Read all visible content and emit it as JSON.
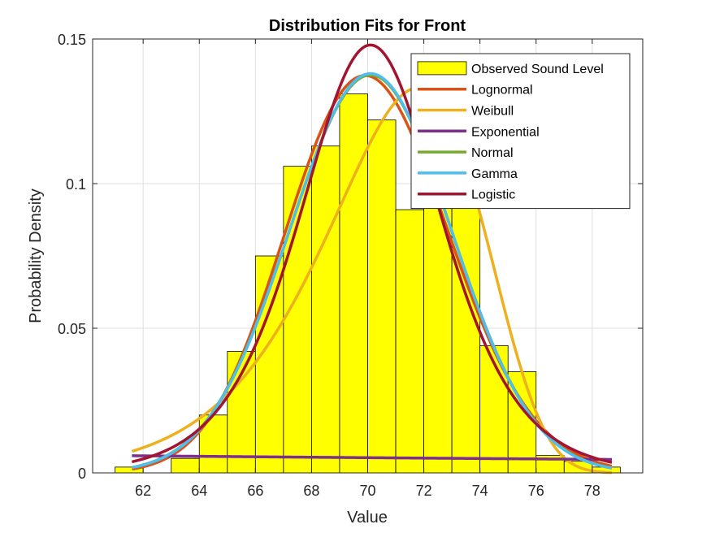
{
  "chart_data": {
    "type": "bar",
    "title": "Distribution Fits for Front",
    "xlabel": "Value",
    "ylabel": "Probability Density",
    "xlim": [
      60.2,
      79.8
    ],
    "ylim": [
      0,
      0.15
    ],
    "x_ticks": [
      62,
      64,
      66,
      68,
      70,
      72,
      74,
      76,
      78
    ],
    "y_ticks": [
      0,
      0.05,
      0.1,
      0.15
    ],
    "y_tick_labels": [
      "0",
      "0.05",
      "0.1",
      "0.15"
    ],
    "grid": true,
    "legend_position": "top-right",
    "histogram": {
      "name": "Observed Sound Level",
      "color": "#FFFF00",
      "edges": [
        61.0,
        62.0,
        63.0,
        64.0,
        65.0,
        66.0,
        67.0,
        68.0,
        69.0,
        70.0,
        71.0,
        72.0,
        73.0,
        74.0,
        75.0,
        76.0,
        77.0,
        78.0,
        79.0
      ],
      "values": [
        0.002,
        0.0,
        0.005,
        0.02,
        0.042,
        0.075,
        0.106,
        0.113,
        0.131,
        0.122,
        0.091,
        0.095,
        0.093,
        0.044,
        0.035,
        0.006,
        0.004,
        0.002
      ]
    },
    "fits": [
      {
        "name": "Lognormal",
        "color": "#D95319",
        "dist": "lognormal",
        "mu": 4.2489,
        "sigma": 0.0415
      },
      {
        "name": "Weibull",
        "color": "#EDB120",
        "dist": "weibull",
        "scale": 71.9,
        "shape": 26.0
      },
      {
        "name": "Exponential",
        "color": "#7E2F8E",
        "dist": "exponential",
        "mean": 70.0
      },
      {
        "name": "Normal",
        "color": "#77AC30",
        "dist": "normal",
        "mu": 70.1,
        "sigma": 2.9
      },
      {
        "name": "Gamma",
        "color": "#4DBEEE",
        "dist": "normal",
        "mu": 70.1,
        "sigma": 2.89
      },
      {
        "name": "Logistic",
        "color": "#A2142F",
        "dist": "logistic",
        "mu": 70.1,
        "s": 1.69
      }
    ]
  }
}
